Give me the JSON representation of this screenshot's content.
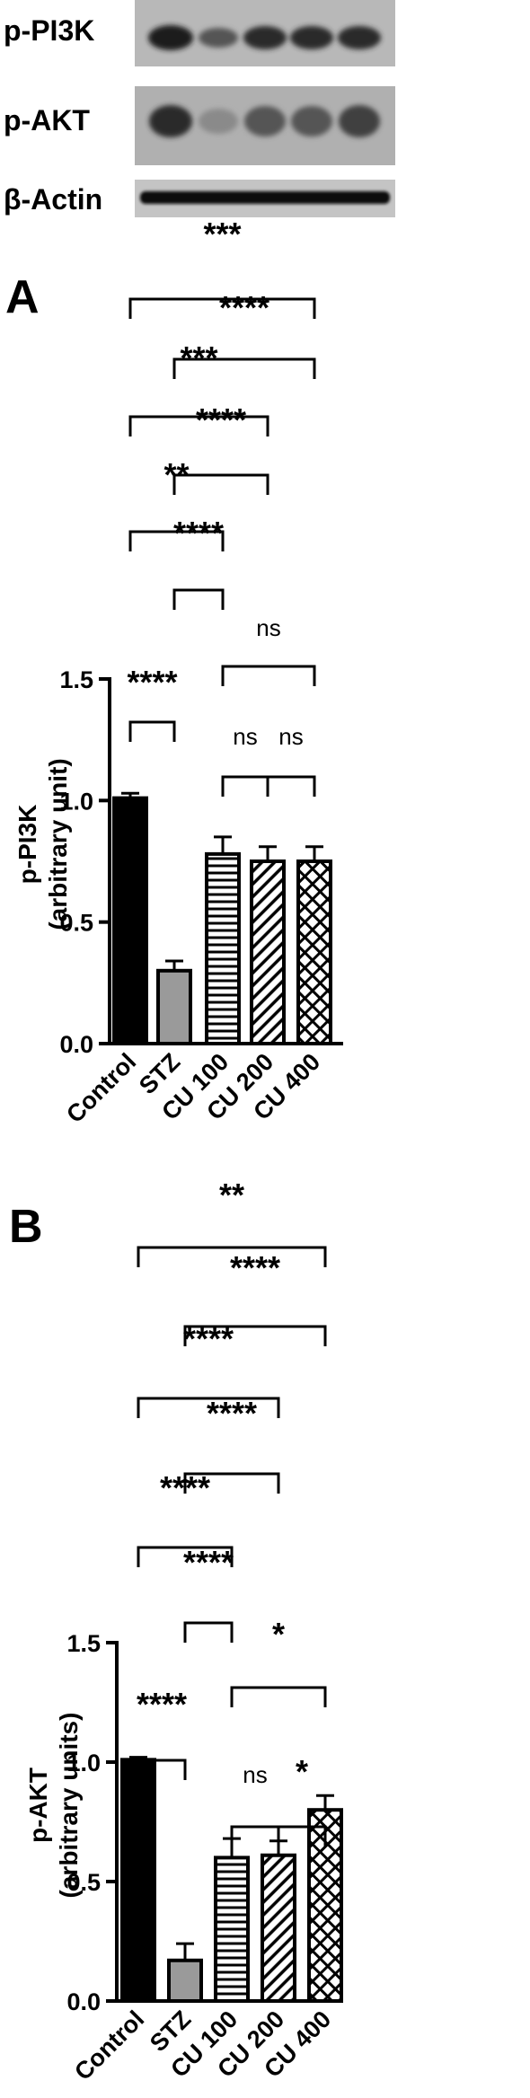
{
  "blot": {
    "labels": [
      "p-PI3K",
      "p-AKT",
      "β-Actin"
    ]
  },
  "chart_data": [
    {
      "type": "bar",
      "panel_label": "A",
      "categories": [
        "Control",
        "STZ",
        "CU 100",
        "CU 200",
        "CU 400"
      ],
      "values": [
        1.01,
        0.3,
        0.78,
        0.75,
        0.75
      ],
      "errors": [
        0.02,
        0.04,
        0.07,
        0.06,
        0.06
      ],
      "fills": [
        "solid-black",
        "solid-gray",
        "horizontal-stripes",
        "diagonal-stripes",
        "crosshatch"
      ],
      "ylabel": "p-PI3K",
      "ylabel2": "(arbitrary unit)",
      "ylim": [
        0,
        1.5
      ],
      "yticks": [
        "0.0",
        "0.5",
        "1.0",
        "1.5"
      ],
      "significance": [
        {
          "from": "Control",
          "to": "CU 400",
          "label": "***"
        },
        {
          "from": "STZ",
          "to": "CU 400",
          "label": "****"
        },
        {
          "from": "Control",
          "to": "CU 200",
          "label": "***"
        },
        {
          "from": "STZ",
          "to": "CU 200",
          "label": "****"
        },
        {
          "from": "Control",
          "to": "CU 100",
          "label": "**"
        },
        {
          "from": "STZ",
          "to": "CU 100",
          "label": "****"
        },
        {
          "from": "CU 100",
          "to": "CU 400",
          "label": "ns"
        },
        {
          "from": "Control",
          "to": "STZ",
          "label": "****"
        },
        {
          "from": "CU 100",
          "to": "CU 200",
          "label": "ns"
        },
        {
          "from": "CU 200",
          "to": "CU 400",
          "label": "ns"
        }
      ]
    },
    {
      "type": "bar",
      "panel_label": "B",
      "categories": [
        "Control",
        "STZ",
        "CU 100",
        "CU 200",
        "CU 400"
      ],
      "values": [
        1.01,
        0.17,
        0.6,
        0.61,
        0.8
      ],
      "errors": [
        0.01,
        0.07,
        0.08,
        0.06,
        0.06
      ],
      "fills": [
        "solid-black",
        "solid-gray",
        "horizontal-stripes",
        "diagonal-stripes",
        "crosshatch"
      ],
      "ylabel": "p-AKT",
      "ylabel2": "(arbitrary units)",
      "ylim": [
        0,
        1.5
      ],
      "yticks": [
        "0.0",
        "0.5",
        "1.0",
        "1.5"
      ],
      "significance": [
        {
          "from": "Control",
          "to": "CU 400",
          "label": "**"
        },
        {
          "from": "STZ",
          "to": "CU 400",
          "label": "****"
        },
        {
          "from": "Control",
          "to": "CU 200",
          "label": "****"
        },
        {
          "from": "STZ",
          "to": "CU 200",
          "label": "****"
        },
        {
          "from": "Control",
          "to": "CU 100",
          "label": "****"
        },
        {
          "from": "STZ",
          "to": "CU 100",
          "label": "****"
        },
        {
          "from": "CU 100",
          "to": "CU 400",
          "label": "*"
        },
        {
          "from": "Control",
          "to": "STZ",
          "label": "****"
        },
        {
          "from": "CU 100",
          "to": "CU 200",
          "label": "ns"
        },
        {
          "from": "CU 200",
          "to": "CU 400",
          "label": "*"
        }
      ]
    }
  ]
}
